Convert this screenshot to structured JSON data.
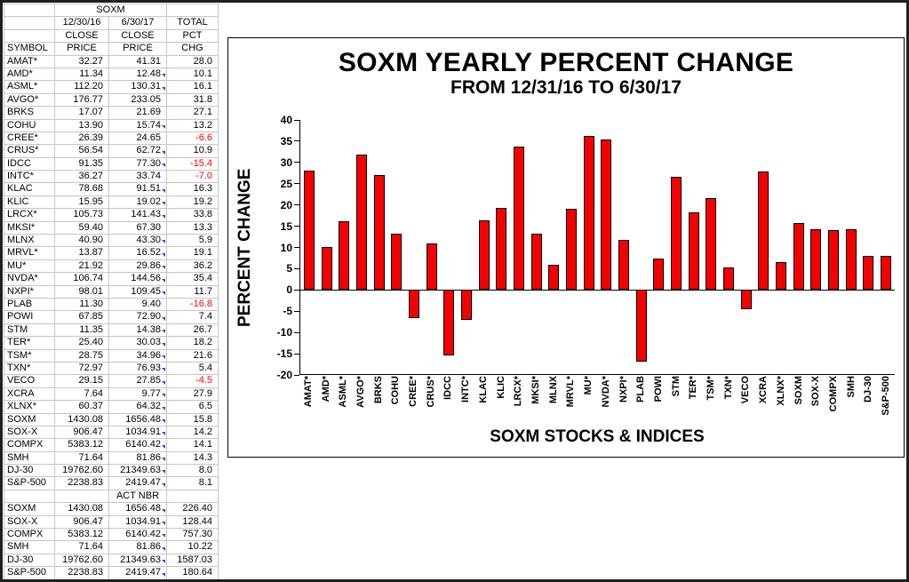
{
  "table": {
    "title": "SOXM",
    "headers": {
      "date1": "12/30/16",
      "date2": "6/30/17",
      "total": "TOTAL",
      "close": "CLOSE",
      "pct": "PCT",
      "symbol": "SYMBOL",
      "price": "PRICE",
      "chg": "CHG"
    },
    "act_nbr_label": "ACT NBR",
    "negative_color": "#ff0000",
    "marker_color": "#3344cc",
    "rows": [
      {
        "symbol": "AMAT*",
        "close1": "32.27",
        "close2": "41.31",
        "chg": "28.0",
        "mark": false
      },
      {
        "symbol": "AMD*",
        "close1": "11.34",
        "close2": "12.48",
        "chg": "10.1",
        "mark": true
      },
      {
        "symbol": "ASML*",
        "close1": "112.20",
        "close2": "130.31",
        "chg": "16.1",
        "mark": true
      },
      {
        "symbol": "AVGO*",
        "close1": "176.77",
        "close2": "233.05",
        "chg": "31.8",
        "mark": false
      },
      {
        "symbol": "BRKS",
        "close1": "17.07",
        "close2": "21.69",
        "chg": "27.1",
        "mark": false
      },
      {
        "symbol": "COHU",
        "close1": "13.90",
        "close2": "15.74",
        "chg": "13.2",
        "mark": true
      },
      {
        "symbol": "CREE*",
        "close1": "26.39",
        "close2": "24.65",
        "chg": "-6.6",
        "mark": false
      },
      {
        "symbol": "CRUS*",
        "close1": "56.54",
        "close2": "62.72",
        "chg": "10.9",
        "mark": true
      },
      {
        "symbol": "IDCC",
        "close1": "91.35",
        "close2": "77.30",
        "chg": "-15.4",
        "mark": true
      },
      {
        "symbol": "INTC*",
        "close1": "36.27",
        "close2": "33.74",
        "chg": "-7.0",
        "mark": false
      },
      {
        "symbol": "KLAC",
        "close1": "78.68",
        "close2": "91.51",
        "chg": "16.3",
        "mark": true
      },
      {
        "symbol": "KLIC",
        "close1": "15.95",
        "close2": "19.02",
        "chg": "19.2",
        "mark": true
      },
      {
        "symbol": "LRCX*",
        "close1": "105.73",
        "close2": "141.43",
        "chg": "33.8",
        "mark": true
      },
      {
        "symbol": "MKSI*",
        "close1": "59.40",
        "close2": "67.30",
        "chg": "13.3",
        "mark": false
      },
      {
        "symbol": "MLNX",
        "close1": "40.90",
        "close2": "43.30",
        "chg": "5.9",
        "mark": true
      },
      {
        "symbol": "MRVL*",
        "close1": "13.87",
        "close2": "16.52",
        "chg": "19.1",
        "mark": true
      },
      {
        "symbol": "MU*",
        "close1": "21.92",
        "close2": "29.86",
        "chg": "36.2",
        "mark": true
      },
      {
        "symbol": "NVDA*",
        "close1": "106.74",
        "close2": "144.56",
        "chg": "35.4",
        "mark": true
      },
      {
        "symbol": "NXPI*",
        "close1": "98.01",
        "close2": "109.45",
        "chg": "11.7",
        "mark": true
      },
      {
        "symbol": "PLAB",
        "close1": "11.30",
        "close2": "9.40",
        "chg": "-16.8",
        "mark": false
      },
      {
        "symbol": "POWI",
        "close1": "67.85",
        "close2": "72.90",
        "chg": "7.4",
        "mark": true
      },
      {
        "symbol": "STM",
        "close1": "11.35",
        "close2": "14.38",
        "chg": "26.7",
        "mark": true
      },
      {
        "symbol": "TER*",
        "close1": "25.40",
        "close2": "30.03",
        "chg": "18.2",
        "mark": true
      },
      {
        "symbol": "TSM*",
        "close1": "28.75",
        "close2": "34.96",
        "chg": "21.6",
        "mark": true
      },
      {
        "symbol": "TXN*",
        "close1": "72.97",
        "close2": "76.93",
        "chg": "5.4",
        "mark": true
      },
      {
        "symbol": "VECO",
        "close1": "29.15",
        "close2": "27.85",
        "chg": "-4.5",
        "mark": true
      },
      {
        "symbol": "XCRA",
        "close1": "7.64",
        "close2": "9.77",
        "chg": "27.9",
        "mark": true
      },
      {
        "symbol": "XLNX*",
        "close1": "60.37",
        "close2": "64.32",
        "chg": "6.5",
        "mark": true
      },
      {
        "symbol": "SOXM",
        "close1": "1430.08",
        "close2": "1656.48",
        "chg": "15.8",
        "mark": true
      },
      {
        "symbol": "SOX-X",
        "close1": "906.47",
        "close2": "1034.91",
        "chg": "14.2",
        "mark": true
      },
      {
        "symbol": "COMPX",
        "close1": "5383.12",
        "close2": "6140.42",
        "chg": "14.1",
        "mark": true
      },
      {
        "symbol": "SMH",
        "close1": "71.64",
        "close2": "81.86",
        "chg": "14.3",
        "mark": true
      },
      {
        "symbol": "DJ-30",
        "close1": "19762.60",
        "close2": "21349.63",
        "chg": "8.0",
        "mark": true
      },
      {
        "symbol": "S&P-500",
        "close1": "2238.83",
        "close2": "2419.47",
        "chg": "8.1",
        "mark": true
      }
    ],
    "act_rows": [
      {
        "symbol": "SOXM",
        "close1": "1430.08",
        "close2": "1656.48",
        "chg": "226.40",
        "mark": true
      },
      {
        "symbol": "SOX-X",
        "close1": "906.47",
        "close2": "1034.91",
        "chg": "128.44",
        "mark": true
      },
      {
        "symbol": "COMPX",
        "close1": "5383.12",
        "close2": "6140.42",
        "chg": "757.30",
        "mark": true
      },
      {
        "symbol": "SMH",
        "close1": "71.64",
        "close2": "81.86",
        "chg": "10.22",
        "mark": true
      },
      {
        "symbol": "DJ-30",
        "close1": "19762.60",
        "close2": "21349.63",
        "chg": "1587.03",
        "mark": true
      },
      {
        "symbol": "S&P-500",
        "close1": "2238.83",
        "close2": "2419.47",
        "chg": "180.64",
        "mark": true
      }
    ]
  },
  "chart_data": {
    "type": "bar",
    "title": "SOXM YEARLY PERCENT CHANGE",
    "subtitle": "FROM 12/31/16 TO 6/30/17",
    "xlabel": "SOXM STOCKS & INDICES",
    "ylabel": "PERCENT CHANGE",
    "ylim": [
      -20,
      40
    ],
    "yticks": [
      40,
      35,
      30,
      25,
      20,
      15,
      10,
      5,
      0,
      -5,
      -10,
      -15,
      -20
    ],
    "grid": false,
    "legend": "none",
    "bar_color": "#f40000",
    "categories": [
      "AMAT*",
      "AMD*",
      "ASML*",
      "AVGO*",
      "BRKS",
      "COHU",
      "CREE*",
      "CRUS*",
      "IDCC",
      "INTC*",
      "KLAC",
      "KLIC",
      "LRCX*",
      "MKSI*",
      "MLNX",
      "MRVL*",
      "MU*",
      "NVDA*",
      "NXPI*",
      "PLAB",
      "POWI",
      "STM",
      "TER*",
      "TSM*",
      "TXN*",
      "VECO",
      "XCRA",
      "XLNX*",
      "SOXM",
      "SOX-X",
      "COMPX",
      "SMH",
      "DJ-30",
      "S&P-500"
    ],
    "values": [
      28.0,
      10.1,
      16.1,
      31.8,
      27.1,
      13.2,
      -6.6,
      10.9,
      -15.4,
      -7.0,
      16.3,
      19.2,
      33.8,
      13.3,
      5.9,
      19.1,
      36.2,
      35.4,
      11.7,
      -16.8,
      7.4,
      26.7,
      18.2,
      21.6,
      5.4,
      -4.5,
      27.9,
      6.5,
      15.8,
      14.2,
      14.1,
      14.3,
      8.0,
      8.1
    ]
  }
}
